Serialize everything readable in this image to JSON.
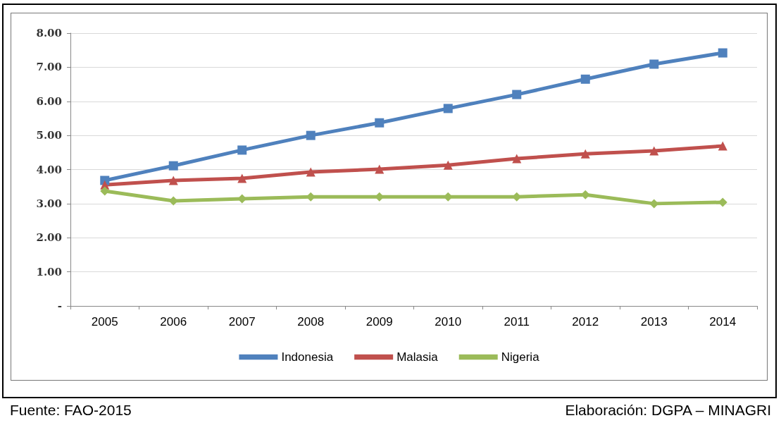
{
  "chart_data": {
    "type": "line",
    "categories": [
      "2005",
      "2006",
      "2007",
      "2008",
      "2009",
      "2010",
      "2011",
      "2012",
      "2013",
      "2014"
    ],
    "series": [
      {
        "name": "Indonesia",
        "color": "#4f81bd",
        "marker": "square",
        "values": [
          3.68,
          4.11,
          4.57,
          5.0,
          5.37,
          5.79,
          6.2,
          6.65,
          7.09,
          7.42
        ]
      },
      {
        "name": "Malasia",
        "color": "#c0504d",
        "marker": "triangle",
        "values": [
          3.55,
          3.68,
          3.74,
          3.93,
          4.01,
          4.13,
          4.32,
          4.46,
          4.55,
          4.69
        ]
      },
      {
        "name": "Nigeria",
        "color": "#9bbb59",
        "marker": "diamond",
        "values": [
          3.37,
          3.08,
          3.14,
          3.2,
          3.2,
          3.2,
          3.2,
          3.26,
          3.0,
          3.04
        ]
      }
    ],
    "ylim": [
      0,
      8
    ],
    "yticks": [
      {
        "value": 0,
        "label": "-"
      },
      {
        "value": 1,
        "label": "1.00"
      },
      {
        "value": 2,
        "label": "2.00"
      },
      {
        "value": 3,
        "label": "3.00"
      },
      {
        "value": 4,
        "label": "4.00"
      },
      {
        "value": 5,
        "label": "5.00"
      },
      {
        "value": 6,
        "label": "6.00"
      },
      {
        "value": 7,
        "label": "7.00"
      },
      {
        "value": 8,
        "label": "8.00"
      }
    ],
    "grid": "y",
    "legend": "bottom",
    "line_style": "solid",
    "annotations": [
      "Fuente: FAO-2015",
      "Elaboración: DGPA – MINAGRI"
    ]
  }
}
